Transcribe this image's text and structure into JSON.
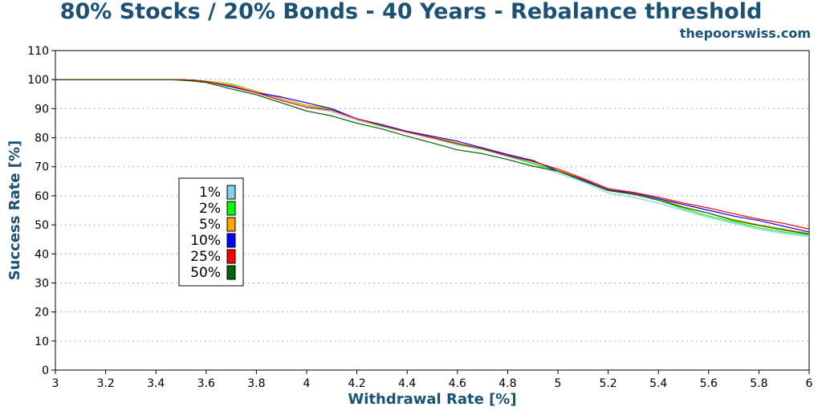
{
  "chart_data": {
    "type": "line",
    "title": "80% Stocks / 20% Bonds - 40 Years - Rebalance threshold",
    "subtitle": "thepoorswiss.com",
    "xlabel": "Withdrawal Rate [%]",
    "ylabel": "Success Rate [%]",
    "xlim": [
      3,
      6
    ],
    "ylim": [
      0,
      110
    ],
    "x_ticks": [
      "3",
      "3.2",
      "3.4",
      "3.6",
      "3.8",
      "4",
      "4.2",
      "4.4",
      "4.6",
      "4.8",
      "5",
      "5.2",
      "5.4",
      "5.6",
      "5.8",
      "6"
    ],
    "y_ticks": [
      "0",
      "10",
      "20",
      "30",
      "40",
      "50",
      "60",
      "70",
      "80",
      "90",
      "100",
      "110"
    ],
    "grid": true,
    "legend_placement": "left-middle",
    "x": [
      3.0,
      3.45,
      3.5,
      3.55,
      3.6,
      3.7,
      3.8,
      3.9,
      4.0,
      4.1,
      4.2,
      4.3,
      4.4,
      4.5,
      4.6,
      4.7,
      4.8,
      4.9,
      5.0,
      5.1,
      5.2,
      5.3,
      5.4,
      5.5,
      5.6,
      5.7,
      5.8,
      5.9,
      6.0
    ],
    "series": [
      {
        "name": "1%",
        "color": "#87ceeb",
        "values": [
          100,
          100,
          100,
          99.8,
          99.2,
          98.2,
          95.8,
          93.0,
          90.5,
          89.0,
          86.0,
          83.8,
          81.8,
          79.8,
          77.5,
          76.0,
          73.5,
          71.0,
          67.8,
          64.8,
          61.0,
          59.5,
          57.5,
          55.0,
          52.5,
          50.5,
          48.5,
          47.0,
          46.0
        ]
      },
      {
        "name": "2%",
        "color": "#00ff00",
        "values": [
          100,
          100,
          100,
          99.8,
          99.5,
          98.5,
          96.0,
          93.5,
          91.0,
          89.8,
          86.5,
          84.0,
          82.0,
          80.0,
          77.8,
          76.0,
          73.8,
          71.2,
          68.5,
          65.5,
          62.0,
          60.5,
          58.5,
          55.5,
          53.0,
          51.0,
          49.0,
          47.5,
          46.5
        ]
      },
      {
        "name": "5%",
        "color": "#ffa500",
        "values": [
          100,
          100,
          100,
          99.8,
          99.4,
          98.3,
          96.0,
          93.5,
          91.2,
          90.0,
          86.5,
          84.2,
          82.2,
          80.3,
          78.2,
          76.2,
          74.2,
          71.8,
          68.8,
          65.8,
          62.2,
          60.8,
          59.0,
          56.2,
          54.0,
          51.8,
          50.0,
          48.5,
          47.0
        ]
      },
      {
        "name": "10%",
        "color": "#0000ff",
        "values": [
          100,
          100,
          100,
          99.8,
          99.3,
          97.5,
          95.5,
          94.0,
          92.0,
          90.0,
          86.5,
          84.5,
          82.2,
          80.5,
          78.8,
          76.5,
          74.2,
          72.2,
          68.5,
          65.5,
          62.0,
          61.0,
          59.0,
          57.0,
          55.0,
          53.0,
          51.5,
          49.5,
          47.5
        ]
      },
      {
        "name": "25%",
        "color": "#ff0000",
        "values": [
          100,
          100,
          100,
          99.8,
          99.3,
          97.8,
          95.5,
          92.8,
          90.5,
          89.5,
          86.5,
          84.2,
          82.0,
          80.0,
          78.0,
          76.2,
          73.8,
          71.8,
          69.2,
          66.0,
          62.5,
          61.2,
          59.5,
          57.5,
          55.8,
          53.8,
          52.0,
          50.5,
          48.5
        ]
      },
      {
        "name": "50%",
        "color": "#006400",
        "values": [
          100,
          100,
          99.8,
          99.5,
          99.0,
          96.8,
          94.8,
          92.0,
          89.2,
          87.5,
          85.0,
          83.0,
          80.5,
          78.2,
          75.8,
          74.5,
          72.5,
          70.2,
          68.5,
          65.2,
          61.8,
          60.5,
          58.5,
          56.0,
          54.0,
          51.5,
          49.8,
          48.2,
          46.8
        ]
      }
    ]
  }
}
